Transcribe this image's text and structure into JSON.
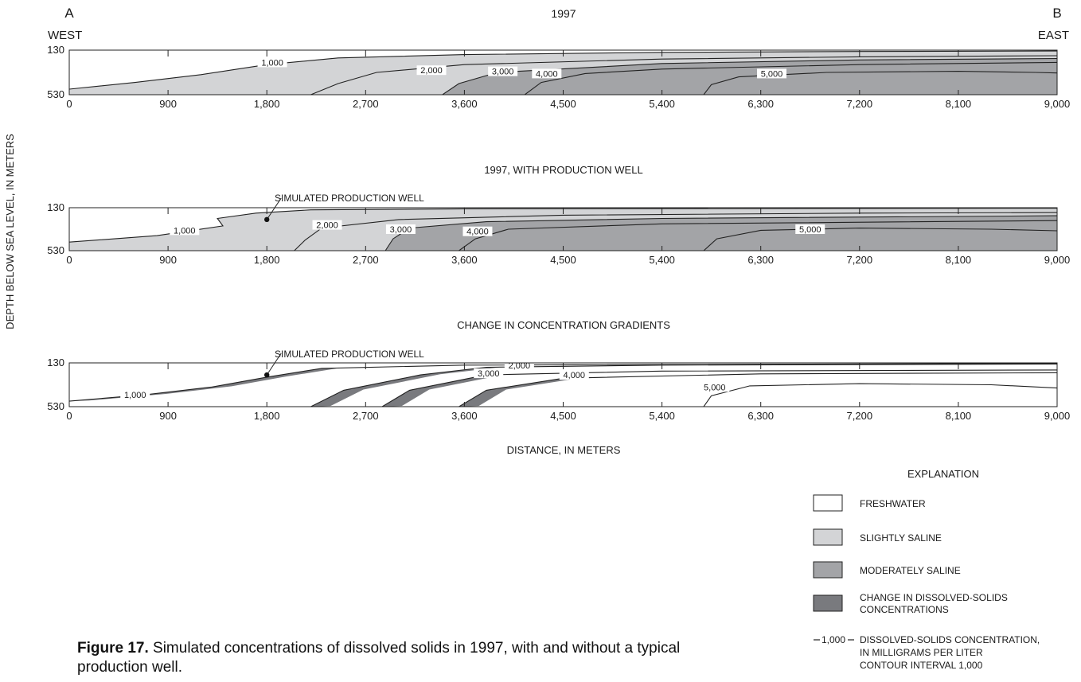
{
  "figure": {
    "caption_label": "Figure 17.",
    "caption_text": " Simulated concentrations of dissolved solids in 1997, with and without a typical production well.",
    "section_start_letter": "A",
    "section_end_letter": "B",
    "west_label": "WEST",
    "east_label": "EAST",
    "ylabel": "DEPTH BELOW SEA LEVEL, IN METERS",
    "xlabel": "DISTANCE, IN METERS",
    "well_label": "SIMULATED PRODUCTION WELL"
  },
  "legend": {
    "title": "EXPLANATION",
    "items": [
      {
        "lines": [
          "FRESHWATER"
        ],
        "color": "#ffffff"
      },
      {
        "lines": [
          "SLIGHTLY SALINE"
        ],
        "color": "#d3d4d6"
      },
      {
        "lines": [
          "MODERATELY SALINE"
        ],
        "color": "#a3a4a7"
      },
      {
        "lines": [
          "CHANGE IN DISSOLVED-SOLIDS",
          "CONCENTRATIONS"
        ],
        "color": "#797a7e"
      }
    ],
    "contour_sample": "1,000",
    "contour_lines": [
      "DISSOLVED-SOLIDS CONCENTRATION,",
      "IN MILLIGRAMS PER LITER",
      "CONTOUR INTERVAL 1,000"
    ]
  },
  "colors": {
    "fresh": "#ffffff",
    "slight": "#d3d4d6",
    "moderate": "#a3a4a7",
    "change": "#797a7e",
    "line": "#222222"
  },
  "chart_data": [
    {
      "type": "area",
      "title": "1997",
      "x_ticks": [
        0,
        900,
        1800,
        2700,
        3600,
        4500,
        5400,
        6300,
        7200,
        8100,
        9000
      ],
      "x_tick_labels": [
        "0",
        "900",
        "1,800",
        "2,700",
        "3,600",
        "4,500",
        "5,400",
        "6,300",
        "7,200",
        "8,100",
        "9,000"
      ],
      "xlim": [
        0,
        9000
      ],
      "ylim": [
        130,
        530
      ],
      "y_tick_labels": [
        "130",
        "530"
      ],
      "contours": [
        {
          "value": 1000,
          "label": "1,000",
          "label_at": [
            1850,
            240
          ],
          "points": [
            [
              0,
              480
            ],
            [
              600,
              420
            ],
            [
              1200,
              350
            ],
            [
              1800,
              260
            ],
            [
              2450,
              200
            ],
            [
              3600,
              170
            ],
            [
              5400,
              150
            ],
            [
              7200,
              142
            ],
            [
              9000,
              138
            ]
          ]
        },
        {
          "value": 2000,
          "label": "2,000",
          "label_at": [
            3300,
            310
          ],
          "points": [
            [
              2200,
              530
            ],
            [
              2450,
              430
            ],
            [
              2800,
              330
            ],
            [
              3600,
              260
            ],
            [
              5400,
              210
            ],
            [
              7200,
              190
            ],
            [
              9000,
              180
            ]
          ]
        },
        {
          "value": 3000,
          "label": "3,000",
          "label_at": [
            3950,
            320
          ],
          "points": [
            [
              3400,
              530
            ],
            [
              3550,
              430
            ],
            [
              3900,
              330
            ],
            [
              5400,
              250
            ],
            [
              7200,
              218
            ],
            [
              9000,
              205
            ]
          ]
        },
        {
          "value": 4000,
          "label": "4,000",
          "label_at": [
            4350,
            340
          ],
          "points": [
            [
              4150,
              530
            ],
            [
              4300,
              420
            ],
            [
              4700,
              340
            ],
            [
              5400,
              300
            ],
            [
              7200,
              260
            ],
            [
              9000,
              240
            ]
          ]
        },
        {
          "value": 5000,
          "label": "5,000",
          "label_at": [
            6400,
            340
          ],
          "points": [
            [
              5780,
              530
            ],
            [
              5850,
              440
            ],
            [
              6100,
              370
            ],
            [
              6900,
              330
            ],
            [
              8100,
              320
            ],
            [
              8800,
              330
            ],
            [
              9000,
              335
            ]
          ]
        }
      ]
    },
    {
      "type": "area",
      "title": "1997, WITH PRODUCTION WELL",
      "x_ticks": [
        0,
        900,
        1800,
        2700,
        3600,
        4500,
        5400,
        6300,
        7200,
        8100,
        9000
      ],
      "x_tick_labels": [
        "0",
        "900",
        "1,800",
        "2,700",
        "3,600",
        "4,500",
        "5,400",
        "6,300",
        "7,200",
        "8,100",
        "9,000"
      ],
      "xlim": [
        0,
        9000
      ],
      "ylim": [
        130,
        530
      ],
      "y_tick_labels": [
        "130",
        "530"
      ],
      "well": {
        "x": 1800,
        "y": 240
      },
      "contours": [
        {
          "value": 1000,
          "label": "1,000",
          "label_at": [
            1050,
            340
          ],
          "points": [
            [
              0,
              450
            ],
            [
              800,
              390
            ],
            [
              1400,
              300
            ],
            [
              1350,
              230
            ],
            [
              1700,
              180
            ],
            [
              2200,
              150
            ],
            [
              3600,
              140
            ],
            [
              9000,
              135
            ]
          ]
        },
        {
          "value": 2000,
          "label": "2,000",
          "label_at": [
            2350,
            290
          ],
          "points": [
            [
              2050,
              530
            ],
            [
              2150,
              430
            ],
            [
              2300,
              320
            ],
            [
              3000,
              240
            ],
            [
              4500,
              200
            ],
            [
              7200,
              180
            ],
            [
              9000,
              175
            ]
          ]
        },
        {
          "value": 3000,
          "label": "3,000",
          "label_at": [
            3020,
            330
          ],
          "points": [
            [
              2880,
              530
            ],
            [
              2950,
              420
            ],
            [
              3100,
              320
            ],
            [
              3800,
              260
            ],
            [
              5400,
              230
            ],
            [
              9000,
              205
            ]
          ]
        },
        {
          "value": 4000,
          "label": "4,000",
          "label_at": [
            3720,
            350
          ],
          "points": [
            [
              3550,
              530
            ],
            [
              3700,
              420
            ],
            [
              4000,
              330
            ],
            [
              5400,
              280
            ],
            [
              9000,
              250
            ]
          ]
        },
        {
          "value": 5000,
          "label": "5,000",
          "label_at": [
            6750,
            330
          ],
          "points": [
            [
              5780,
              530
            ],
            [
              5900,
              420
            ],
            [
              6300,
              340
            ],
            [
              7200,
              320
            ],
            [
              8400,
              330
            ],
            [
              9000,
              345
            ]
          ]
        }
      ]
    },
    {
      "type": "area",
      "title": "CHANGE IN CONCENTRATION GRADIENTS",
      "x_ticks": [
        0,
        900,
        1800,
        2700,
        3600,
        4500,
        5400,
        6300,
        7200,
        8100,
        9000
      ],
      "x_tick_labels": [
        "0",
        "900",
        "1,800",
        "2,700",
        "3,600",
        "4,500",
        "5,400",
        "6,300",
        "7,200",
        "8,100",
        "9,000"
      ],
      "xlim": [
        0,
        9000
      ],
      "ylim": [
        130,
        530
      ],
      "y_tick_labels": [
        "130",
        "530"
      ],
      "well": {
        "x": 1800,
        "y": 240
      },
      "contours": [
        {
          "value": 1000,
          "label": "1,000",
          "label_at": [
            600,
            420
          ],
          "points": [
            [
              0,
              480
            ],
            [
              700,
              420
            ],
            [
              1300,
              350
            ],
            [
              1800,
              260
            ],
            [
              2300,
              180
            ],
            [
              3600,
              150
            ],
            [
              9000,
              135
            ]
          ]
        },
        {
          "value": 2000,
          "label": "2,000",
          "label_at": [
            4100,
            150
          ],
          "points": [
            [
              2200,
              530
            ],
            [
              2500,
              380
            ],
            [
              3200,
              240
            ],
            [
              3800,
              170
            ],
            [
              5400,
              150
            ],
            [
              9000,
              140
            ]
          ]
        },
        {
          "value": 3000,
          "label": "3,000",
          "label_at": [
            3820,
            225
          ],
          "points": [
            [
              2850,
              530
            ],
            [
              3100,
              380
            ],
            [
              3800,
              240
            ],
            [
              5400,
              205
            ],
            [
              9000,
              195
            ]
          ]
        },
        {
          "value": 4000,
          "label": "4,000",
          "label_at": [
            4600,
            240
          ],
          "points": [
            [
              3550,
              530
            ],
            [
              3800,
              380
            ],
            [
              4500,
              270
            ],
            [
              6300,
              230
            ],
            [
              9000,
              220
            ]
          ]
        },
        {
          "value": 5000,
          "label": "5,000",
          "label_at": [
            5880,
            350
          ],
          "points": [
            [
              5780,
              530
            ],
            [
              5850,
              430
            ],
            [
              6200,
              340
            ],
            [
              7200,
              320
            ],
            [
              8400,
              330
            ],
            [
              9000,
              360
            ]
          ]
        }
      ]
    }
  ]
}
